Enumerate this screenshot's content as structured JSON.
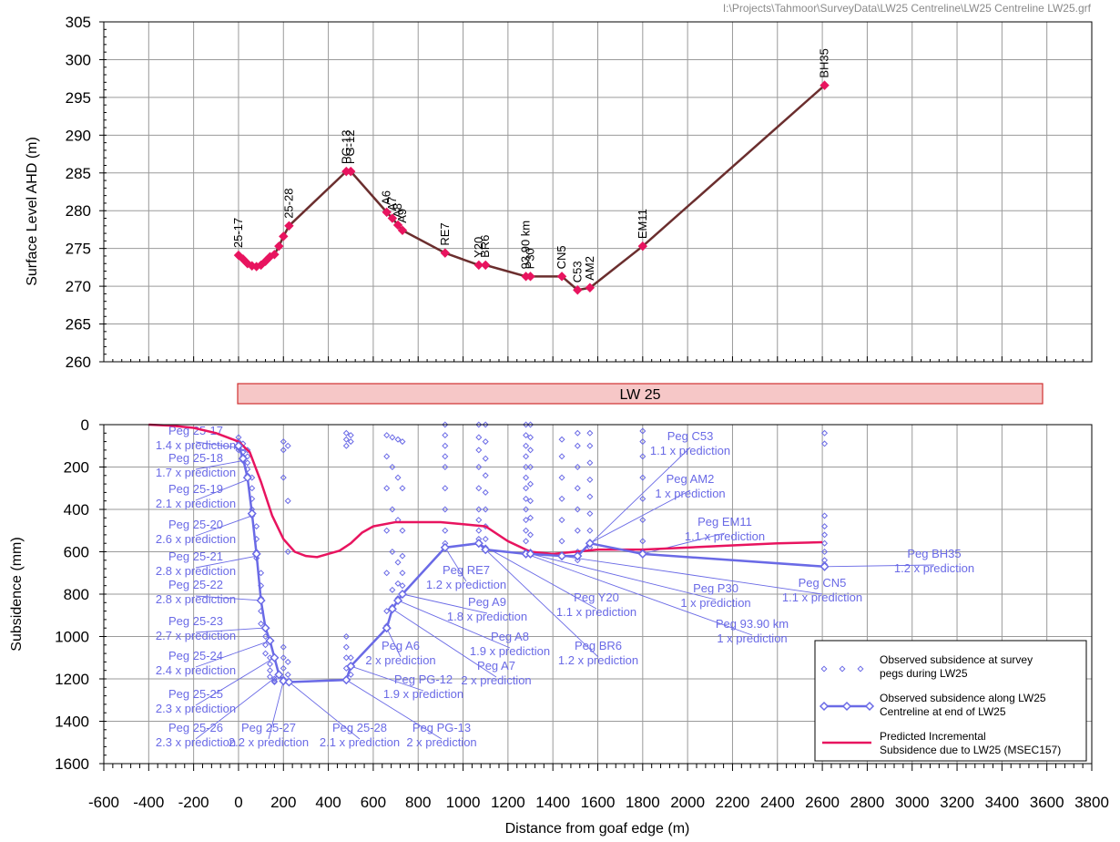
{
  "filepath": "I:\\Projects\\Tahmoor\\SurveyData\\LW25 Centreline\\LW25 Centreline LW25.grf",
  "colors": {
    "profile_line": "#6b2e2e",
    "profile_marker": "#e8145f",
    "observed": "#6a6ae6",
    "predicted": "#e8145f",
    "panel_fill": "#f6c7c7",
    "panel_stroke": "#d03030"
  },
  "panel_label": "LW 25",
  "chart_data": [
    {
      "type": "line",
      "ylabel": "Surface Level AHD (m)",
      "ylim": [
        260,
        305
      ],
      "yticks": [
        260,
        265,
        270,
        275,
        280,
        285,
        290,
        295,
        300,
        305
      ],
      "xlim": [
        -600,
        3800
      ],
      "grid": true,
      "line": [
        [
          0,
          274.1
        ],
        [
          20,
          273.6
        ],
        [
          40,
          273.0
        ],
        [
          60,
          272.7
        ],
        [
          80,
          272.6
        ],
        [
          100,
          272.8
        ],
        [
          120,
          273.3
        ],
        [
          140,
          273.9
        ],
        [
          160,
          274.2
        ],
        [
          180,
          275.3
        ],
        [
          200,
          276.6
        ],
        [
          225,
          278.0
        ],
        [
          480,
          285.2
        ],
        [
          500,
          285.2
        ],
        [
          660,
          279.8
        ],
        [
          685,
          279.0
        ],
        [
          710,
          278.1
        ],
        [
          730,
          277.4
        ],
        [
          920,
          274.4
        ],
        [
          1070,
          272.8
        ],
        [
          1100,
          272.8
        ],
        [
          1280,
          271.3
        ],
        [
          1300,
          271.3
        ],
        [
          1440,
          271.3
        ],
        [
          1510,
          269.5
        ],
        [
          1565,
          269.8
        ],
        [
          1800,
          275.3
        ],
        [
          2610,
          296.6
        ]
      ],
      "point_labels": [
        {
          "label": "25-17",
          "x": 0,
          "y": 274.1
        },
        {
          "label": "25-28",
          "x": 225,
          "y": 278.0
        },
        {
          "label": "PG-13",
          "x": 480,
          "y": 285.2
        },
        {
          "label": "PG-12",
          "x": 500,
          "y": 285.2
        },
        {
          "label": "A6",
          "x": 660,
          "y": 279.8
        },
        {
          "label": "A7",
          "x": 685,
          "y": 279.0
        },
        {
          "label": "A8",
          "x": 710,
          "y": 278.1
        },
        {
          "label": "A9",
          "x": 730,
          "y": 277.4
        },
        {
          "label": "RE7",
          "x": 920,
          "y": 274.4
        },
        {
          "label": "Y20",
          "x": 1070,
          "y": 272.8
        },
        {
          "label": "BR6",
          "x": 1100,
          "y": 272.8
        },
        {
          "label": "93.90 km",
          "x": 1280,
          "y": 271.3
        },
        {
          "label": "P30",
          "x": 1300,
          "y": 271.3
        },
        {
          "label": "CN5",
          "x": 1440,
          "y": 271.3
        },
        {
          "label": "C53",
          "x": 1510,
          "y": 269.5
        },
        {
          "label": "AM2",
          "x": 1565,
          "y": 269.8
        },
        {
          "label": "EM11",
          "x": 1800,
          "y": 275.3
        },
        {
          "label": "BH35",
          "x": 2610,
          "y": 296.6
        }
      ]
    },
    {
      "type": "line",
      "ylabel": "Subsidence (mm)",
      "xlabel": "Distance from goaf edge (m)",
      "ylim": [
        0,
        1600
      ],
      "y_inverted": true,
      "yticks": [
        0,
        200,
        400,
        600,
        800,
        1000,
        1200,
        1400,
        1600
      ],
      "xlim": [
        -600,
        3800
      ],
      "xticks": [
        -600,
        -400,
        -200,
        0,
        200,
        400,
        600,
        800,
        1000,
        1200,
        1400,
        1600,
        1800,
        2000,
        2200,
        2400,
        2600,
        2800,
        3000,
        3200,
        3400,
        3600,
        3800
      ],
      "grid": true,
      "legend_position": "bottom-right",
      "series": [
        {
          "name": "Observed subsidence at survey pegs during LW25",
          "style": "scatter",
          "columns": [
            {
              "x": 0,
              "ys": [
                60,
                80,
                100,
                110,
                120
              ]
            },
            {
              "x": 20,
              "ys": [
                90,
                110,
                130,
                150,
                170
              ]
            },
            {
              "x": 40,
              "ys": [
                120,
                150,
                180,
                210,
                240
              ]
            },
            {
              "x": 60,
              "ys": [
                250,
                300,
                350,
                400,
                430
              ]
            },
            {
              "x": 80,
              "ys": [
                480,
                540,
                600,
                630
              ]
            },
            {
              "x": 100,
              "ys": [
                700,
                760,
                820,
                880,
                940
              ]
            },
            {
              "x": 120,
              "ys": [
                960,
                1000,
                1040,
                1080
              ]
            },
            {
              "x": 140,
              "ys": [
                1100,
                1130,
                1160,
                1190
              ]
            },
            {
              "x": 160,
              "ys": [
                1200,
                1210,
                1215
              ]
            },
            {
              "x": 200,
              "ys": [
                80,
                120,
                250,
                1050,
                1100,
                1150,
                1200
              ]
            },
            {
              "x": 220,
              "ys": [
                100,
                360,
                600,
                1120,
                1180
              ]
            },
            {
              "x": 480,
              "ys": [
                40,
                70,
                100,
                1000,
                1050,
                1100,
                1150,
                1200
              ]
            },
            {
              "x": 500,
              "ys": [
                50,
                80,
                1100,
                1140,
                1180
              ]
            },
            {
              "x": 660,
              "ys": [
                50,
                150,
                300,
                500,
                700,
                880,
                950
              ]
            },
            {
              "x": 685,
              "ys": [
                60,
                200,
                400,
                600,
                780,
                860
              ]
            },
            {
              "x": 710,
              "ys": [
                70,
                250,
                450,
                650,
                750,
                820
              ]
            },
            {
              "x": 730,
              "ys": [
                80,
                300,
                500,
                620,
                700,
                760,
                800
              ]
            },
            {
              "x": 920,
              "ys": [
                0,
                50,
                100,
                150,
                200,
                300,
                400,
                500,
                560
              ]
            },
            {
              "x": 1070,
              "ys": [
                0,
                60,
                120,
                200,
                300,
                400,
                450,
                500,
                540
              ]
            },
            {
              "x": 1100,
              "ys": [
                0,
                80,
                160,
                240,
                320,
                400,
                480,
                540,
                580
              ]
            },
            {
              "x": 1280,
              "ys": [
                0,
                50,
                100,
                150,
                200,
                250,
                300,
                350,
                400,
                450,
                500,
                550,
                600
              ]
            },
            {
              "x": 1300,
              "ys": [
                0,
                60,
                120,
                200,
                280,
                360,
                440,
                520,
                600
              ]
            },
            {
              "x": 1440,
              "ys": [
                70,
                150,
                250,
                350,
                450,
                550,
                620
              ]
            },
            {
              "x": 1510,
              "ys": [
                40,
                100,
                200,
                300,
                400,
                500,
                600,
                640
              ]
            },
            {
              "x": 1565,
              "ys": [
                40,
                100,
                180,
                260,
                340,
                420,
                500,
                580
              ]
            },
            {
              "x": 1800,
              "ys": [
                30,
                80,
                150,
                250,
                350,
                450,
                550,
                600
              ]
            },
            {
              "x": 2610,
              "ys": [
                40,
                90,
                430,
                480,
                520,
                560,
                600,
                640,
                660
              ]
            }
          ]
        },
        {
          "name": "Observed subsidence along LW25 Centreline at end of LW25",
          "style": "line-markers",
          "x": [
            0,
            20,
            40,
            60,
            80,
            100,
            120,
            140,
            160,
            180,
            200,
            225,
            480,
            500,
            660,
            685,
            710,
            730,
            920,
            1070,
            1100,
            1280,
            1300,
            1440,
            1510,
            1565,
            1800,
            2610
          ],
          "y": [
            100,
            160,
            250,
            420,
            610,
            830,
            960,
            1020,
            1100,
            1180,
            1210,
            1215,
            1205,
            1140,
            960,
            870,
            830,
            800,
            580,
            560,
            590,
            610,
            610,
            620,
            620,
            560,
            610,
            670
          ]
        },
        {
          "name": "Predicted Incremental Subsidence due to LW25 (MSEC157)",
          "style": "line",
          "x": [
            -400,
            -300,
            -200,
            -100,
            -50,
            0,
            50,
            100,
            150,
            200,
            250,
            300,
            350,
            400,
            450,
            500,
            550,
            600,
            700,
            800,
            900,
            1000,
            1100,
            1200,
            1300,
            1400,
            1500,
            1600,
            1800,
            2000,
            2200,
            2400,
            2600
          ],
          "y": [
            0,
            5,
            15,
            40,
            60,
            80,
            130,
            270,
            430,
            540,
            600,
            620,
            625,
            610,
            595,
            560,
            510,
            480,
            460,
            460,
            460,
            470,
            480,
            550,
            600,
            610,
            600,
            590,
            590,
            580,
            570,
            560,
            555
          ]
        }
      ],
      "annotations": [
        {
          "lines": [
            "Peg 25-17",
            "1.4 x prediction"
          ],
          "x": 0,
          "y": 110
        },
        {
          "lines": [
            "Peg 25-18",
            "1.7 x prediction"
          ],
          "x": 20,
          "y": 170
        },
        {
          "lines": [
            "Peg 25-19",
            "2.1 x prediction"
          ],
          "x": 40,
          "y": 260
        },
        {
          "lines": [
            "Peg 25-20",
            "2.6 x prediction"
          ],
          "x": 60,
          "y": 430
        },
        {
          "lines": [
            "Peg 25-21",
            "2.8 x prediction"
          ],
          "x": 80,
          "y": 620
        },
        {
          "lines": [
            "Peg 25-22",
            "2.8 x prediction"
          ],
          "x": 100,
          "y": 830
        },
        {
          "lines": [
            "Peg 25-23",
            "2.7 x prediction"
          ],
          "x": 110,
          "y": 960
        },
        {
          "lines": [
            "Peg 25-24",
            "2.4 x prediction"
          ],
          "x": 140,
          "y": 1020
        },
        {
          "lines": [
            "Peg 25-25",
            "2.3 x prediction"
          ],
          "x": 160,
          "y": 1100
        },
        {
          "lines": [
            "Peg 25-26",
            "2.3 x prediction"
          ],
          "x": 180,
          "y": 1180
        },
        {
          "lines": [
            "Peg 25-27",
            "2.2 x prediction"
          ],
          "x": 200,
          "y": 1210
        },
        {
          "lines": [
            "Peg 25-28",
            "2.1 x prediction"
          ],
          "x": 225,
          "y": 1215
        },
        {
          "lines": [
            "Peg PG-13",
            "2 x prediction"
          ],
          "x": 480,
          "y": 1205
        },
        {
          "lines": [
            "Peg PG-12",
            "1.9 x prediction"
          ],
          "x": 500,
          "y": 1140
        },
        {
          "lines": [
            "Peg A6",
            "2 x prediction"
          ],
          "x": 660,
          "y": 960
        },
        {
          "lines": [
            "Peg A7",
            "2 x prediction"
          ],
          "x": 685,
          "y": 870
        },
        {
          "lines": [
            "Peg A8",
            "1.9 x prediction"
          ],
          "x": 710,
          "y": 830
        },
        {
          "lines": [
            "Peg A9",
            "1.8 x prediction"
          ],
          "x": 730,
          "y": 800
        },
        {
          "lines": [
            "Peg RE7",
            "1.2 x prediction"
          ],
          "x": 920,
          "y": 580
        },
        {
          "lines": [
            "Peg BR6",
            "1.2 x prediction"
          ],
          "x": 1100,
          "y": 590
        },
        {
          "lines": [
            "Peg Y20",
            "1.1 x prediction"
          ],
          "x": 1070,
          "y": 560
        },
        {
          "lines": [
            "Peg 93.90 km",
            "1 x prediction"
          ],
          "x": 1280,
          "y": 610
        },
        {
          "lines": [
            "Peg P30",
            "1 x prediction"
          ],
          "x": 1300,
          "y": 610
        },
        {
          "lines": [
            "Peg CN5",
            "1.1 x prediction"
          ],
          "x": 1440,
          "y": 620
        },
        {
          "lines": [
            "Peg C53",
            "1.1 x prediction"
          ],
          "x": 1510,
          "y": 620
        },
        {
          "lines": [
            "Peg AM2",
            "1 x prediction"
          ],
          "x": 1565,
          "y": 560
        },
        {
          "lines": [
            "Peg EM11",
            "1.1 x prediction"
          ],
          "x": 1800,
          "y": 610
        },
        {
          "lines": [
            "Peg BH35",
            "1.2 x prediction"
          ],
          "x": 2610,
          "y": 670
        }
      ]
    }
  ]
}
